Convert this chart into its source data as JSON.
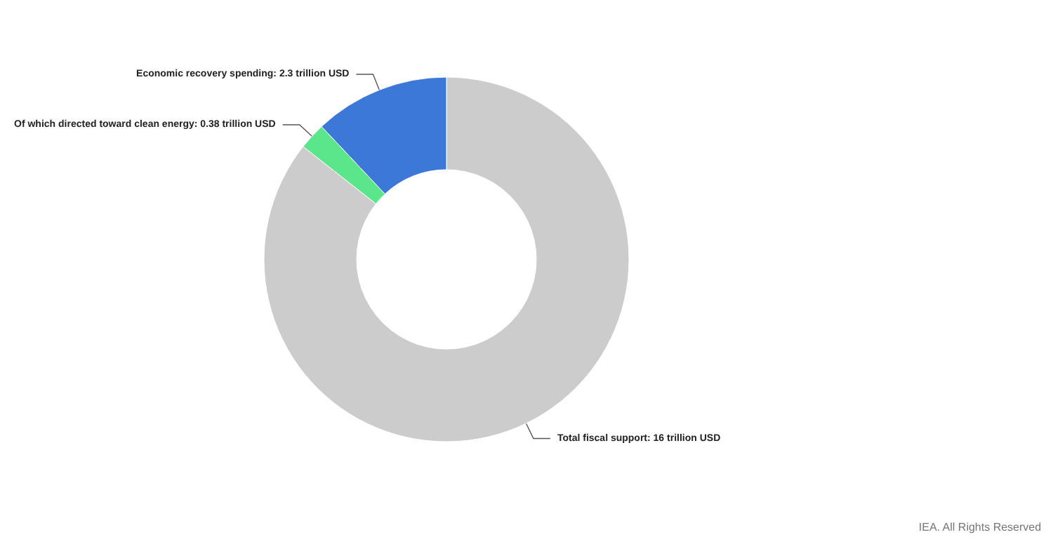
{
  "chart_data": {
    "type": "donut",
    "categories": [
      "Total fiscal support: 16 trillion USD",
      "Of which directed toward clean energy: 0.38 trillion USD",
      "Economic recovery spending: 2.3 trillion USD"
    ],
    "values": [
      13.7,
      0.38,
      1.92
    ],
    "colors": [
      "#cccccc",
      "#5ce68c",
      "#3b78d8"
    ],
    "legend": false,
    "annotations": [
      "IEA. All Rights Reserved"
    ]
  }
}
